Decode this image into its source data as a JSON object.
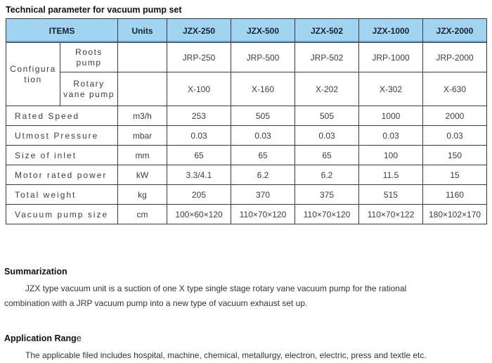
{
  "title": "Technical parameter for vacuum pump set",
  "colors": {
    "header_bg": "#a3d3f3",
    "header_bottom_line": "#6b9fd2",
    "border": "#3a3a3a"
  },
  "table": {
    "header": [
      "ITEMS",
      "Units",
      "JZX-250",
      "JZX-500",
      "JZX-502",
      "JZX-1000",
      "JZX-2000"
    ],
    "config_label": "Configuration",
    "config_rows": [
      {
        "label": "Roots pump",
        "units": "",
        "values": [
          "JRP-250",
          "JRP-500",
          "JRP-502",
          "JRP-1000",
          "JRP-2000"
        ]
      },
      {
        "label": "Rotary vane pump",
        "units": "",
        "values": [
          "X-100",
          "X-160",
          "X-202",
          "X-302",
          "X-630"
        ]
      }
    ],
    "rows": [
      {
        "label": "Rated Speed",
        "units": "m3/h",
        "values": [
          "253",
          "505",
          "505",
          "1000",
          "2000"
        ]
      },
      {
        "label": "Utmost Pressure",
        "units": "mbar",
        "values": [
          "0.03",
          "0.03",
          "0.03",
          "0.03",
          "0.03"
        ]
      },
      {
        "label": "Size of inlet",
        "units": "mm",
        "values": [
          "65",
          "65",
          "65",
          "100",
          "150"
        ]
      },
      {
        "label": "Motor rated power",
        "units": "kW",
        "values": [
          "3.3/4.1",
          "6.2",
          "6.2",
          "11.5",
          "15"
        ]
      },
      {
        "label": "Total weight",
        "units": "kg",
        "values": [
          "205",
          "370",
          "375",
          "515",
          "1160"
        ]
      },
      {
        "label": "Vacuum pump size",
        "units": "cm",
        "values": [
          "100×60×120",
          "110×70×120",
          "110×70×120",
          "110×70×122",
          "180×102×170"
        ]
      }
    ]
  },
  "summarization": {
    "heading": "Summarization",
    "text": "JZX type vacuum unit is a suction of one X type single stage rotary vane vacuum pump for the rational combination with a JRP vacuum pump into a new type of vacuum exhaust set up."
  },
  "application": {
    "heading_bold": "Application Rang",
    "heading_tail": "e",
    "text": "The applicable filed includes hospital, machine, chemical, metallurgy, electron, electric, press and textle etc."
  }
}
